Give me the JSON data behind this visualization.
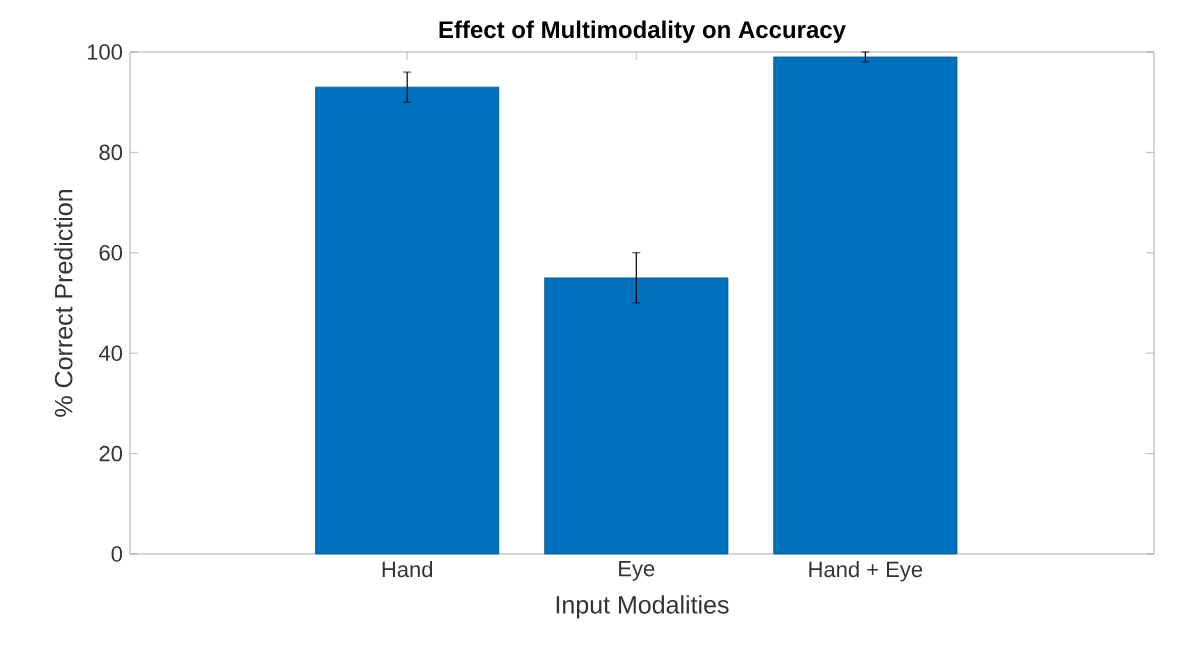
{
  "chart_data": {
    "type": "bar",
    "title": "Effect of Multimodality on Accuracy",
    "xlabel": "Input Modalities",
    "ylabel": "% Correct Prediction",
    "categories": [
      "Hand",
      "Eye",
      "Hand + Eye"
    ],
    "values": [
      93,
      55,
      99
    ],
    "errors": [
      3,
      5,
      1
    ],
    "color": "#0072bd",
    "ylim": [
      0,
      100
    ],
    "yticks": [
      0,
      20,
      40,
      60,
      80,
      100
    ],
    "grid": false
  }
}
